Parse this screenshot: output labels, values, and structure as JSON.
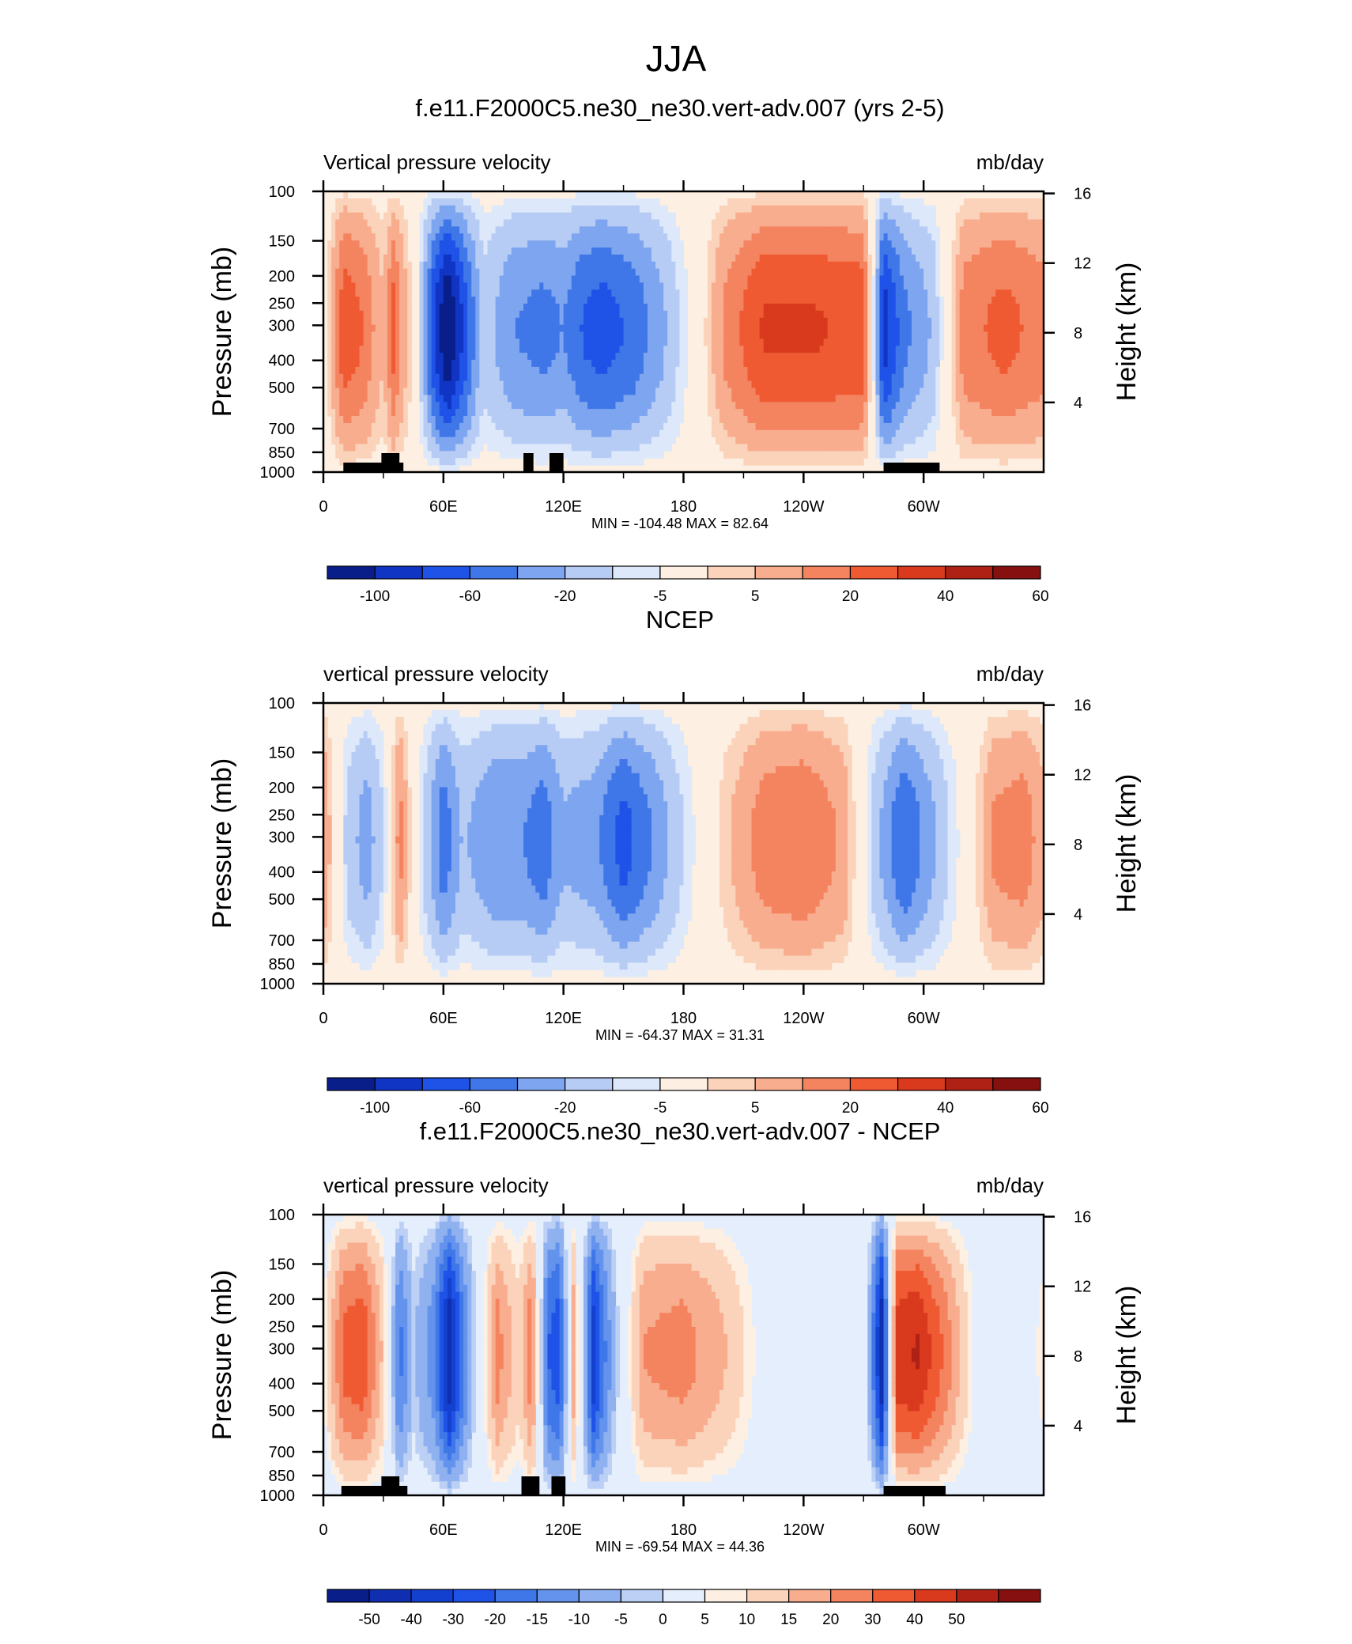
{
  "main_title": "JJA",
  "chart_data": [
    {
      "type": "heatmap",
      "title": "f.e11.F2000C5.ne30_ne30.vert-adv.007 (yrs 2-5)",
      "left_label": "Vertical pressure velocity",
      "units_label": "mb/day",
      "ylabel": "Pressure (mb)",
      "ylabel_right": "Height (km)",
      "y_ticks": [
        "100",
        "150",
        "200",
        "250",
        "300",
        "400",
        "500",
        "700",
        "850",
        "1000"
      ],
      "y_right_ticks": [
        "16",
        "12",
        "8",
        "4"
      ],
      "x_ticks": [
        "0",
        "60E",
        "120E",
        "180",
        "120W",
        "60W"
      ],
      "stats": "MIN = -104.48  MAX =  82.64",
      "colorbar_labels": [
        "-100",
        "-60",
        "-20",
        "-5",
        "5",
        "20",
        "40",
        "60"
      ],
      "colorbar_colors": [
        "#0a1e8a",
        "#1034c4",
        "#1f52e6",
        "#3f77e8",
        "#7ea5ef",
        "#b7ccf5",
        "#dde9fb",
        "#fdf0e3",
        "#fbd3bb",
        "#f8ad8e",
        "#f4845f",
        "#ef5a33",
        "#d9391d",
        "#b02115",
        "#85100f"
      ],
      "columns": [
        {
          "x": 0,
          "core": 0.0
        },
        {
          "x": 10,
          "core": 0.55
        },
        {
          "x": 20,
          "core": 0.45
        },
        {
          "x": 30,
          "core": 0.2
        },
        {
          "x": 35,
          "core": 0.5
        },
        {
          "x": 45,
          "core": 0.05
        },
        {
          "x": 55,
          "core": -0.7
        },
        {
          "x": 62,
          "core": -1.0
        },
        {
          "x": 70,
          "core": -0.7
        },
        {
          "x": 80,
          "core": -0.25
        },
        {
          "x": 95,
          "core": -0.45
        },
        {
          "x": 110,
          "core": -0.5
        },
        {
          "x": 120,
          "core": -0.45
        },
        {
          "x": 130,
          "core": -0.6
        },
        {
          "x": 140,
          "core": -0.65
        },
        {
          "x": 155,
          "core": -0.55
        },
        {
          "x": 170,
          "core": -0.35
        },
        {
          "x": 185,
          "core": -0.05
        },
        {
          "x": 200,
          "core": 0.35
        },
        {
          "x": 220,
          "core": 0.6
        },
        {
          "x": 245,
          "core": 0.6
        },
        {
          "x": 270,
          "core": 0.55
        },
        {
          "x": 280,
          "core": -0.8
        },
        {
          "x": 290,
          "core": -0.5
        },
        {
          "x": 305,
          "core": -0.3
        },
        {
          "x": 320,
          "core": 0.4
        },
        {
          "x": 340,
          "core": 0.5
        },
        {
          "x": 360,
          "core": 0.4
        }
      ],
      "land_marks": [
        [
          10,
          40,
          "low"
        ],
        [
          29,
          38,
          "high"
        ],
        [
          100,
          105,
          "high"
        ],
        [
          113,
          120,
          "high"
        ],
        [
          280,
          308,
          "low"
        ]
      ]
    },
    {
      "type": "heatmap",
      "title": "NCEP",
      "left_label": "vertical pressure velocity",
      "units_label": "mb/day",
      "ylabel": "Pressure (mb)",
      "ylabel_right": "Height (km)",
      "y_ticks": [
        "100",
        "150",
        "200",
        "250",
        "300",
        "400",
        "500",
        "700",
        "850",
        "1000"
      ],
      "y_right_ticks": [
        "16",
        "12",
        "8",
        "4"
      ],
      "x_ticks": [
        "0",
        "60E",
        "120E",
        "180",
        "120W",
        "60W"
      ],
      "stats": "MIN = -64.37  MAX =  31.31",
      "colorbar_labels": [
        "-100",
        "-60",
        "-20",
        "-5",
        "5",
        "20",
        "40",
        "60"
      ],
      "colorbar_colors": [
        "#0a1e8a",
        "#1034c4",
        "#1f52e6",
        "#3f77e8",
        "#7ea5ef",
        "#b7ccf5",
        "#dde9fb",
        "#fdf0e3",
        "#fbd3bb",
        "#f8ad8e",
        "#f4845f",
        "#ef5a33",
        "#d9391d",
        "#b02115",
        "#85100f"
      ],
      "columns": [
        {
          "x": 0,
          "core": 0.35
        },
        {
          "x": 12,
          "core": -0.25
        },
        {
          "x": 22,
          "core": -0.4
        },
        {
          "x": 30,
          "core": -0.2
        },
        {
          "x": 38,
          "core": 0.4
        },
        {
          "x": 48,
          "core": -0.15
        },
        {
          "x": 60,
          "core": -0.55
        },
        {
          "x": 70,
          "core": -0.3
        },
        {
          "x": 85,
          "core": -0.45
        },
        {
          "x": 100,
          "core": -0.45
        },
        {
          "x": 110,
          "core": -0.55
        },
        {
          "x": 120,
          "core": -0.35
        },
        {
          "x": 135,
          "core": -0.4
        },
        {
          "x": 150,
          "core": -0.65
        },
        {
          "x": 165,
          "core": -0.45
        },
        {
          "x": 180,
          "core": -0.2
        },
        {
          "x": 200,
          "core": 0.15
        },
        {
          "x": 220,
          "core": 0.4
        },
        {
          "x": 240,
          "core": 0.45
        },
        {
          "x": 260,
          "core": 0.3
        },
        {
          "x": 275,
          "core": -0.25
        },
        {
          "x": 290,
          "core": -0.6
        },
        {
          "x": 305,
          "core": -0.35
        },
        {
          "x": 320,
          "core": -0.05
        },
        {
          "x": 335,
          "core": 0.35
        },
        {
          "x": 350,
          "core": 0.4
        },
        {
          "x": 360,
          "core": 0.25
        }
      ],
      "land_marks": []
    },
    {
      "type": "heatmap",
      "title": "f.e11.F2000C5.ne30_ne30.vert-adv.007 - NCEP",
      "left_label": "vertical pressure velocity",
      "units_label": "mb/day",
      "ylabel": "Pressure (mb)",
      "ylabel_right": "Height (km)",
      "y_ticks": [
        "100",
        "150",
        "200",
        "250",
        "300",
        "400",
        "500",
        "700",
        "850",
        "1000"
      ],
      "y_right_ticks": [
        "16",
        "12",
        "8",
        "4"
      ],
      "x_ticks": [
        "0",
        "60E",
        "120E",
        "180",
        "120W",
        "60W"
      ],
      "stats": "MIN = -69.54  MAX =  44.36",
      "colorbar_labels": [
        "-50",
        "-40",
        "-30",
        "-20",
        "-15",
        "-10",
        "-5",
        "0",
        "5",
        "10",
        "15",
        "20",
        "30",
        "40",
        "50"
      ],
      "colorbar_colors": [
        "#0a1e8a",
        "#0f2fb0",
        "#1440d0",
        "#1f52e6",
        "#3f77e8",
        "#6393ec",
        "#8fb1f0",
        "#bcd0f6",
        "#e4eefc",
        "#fdf0e3",
        "#fbd3bb",
        "#f8ad8e",
        "#f4845f",
        "#ef5a33",
        "#d9391d",
        "#b02115",
        "#85100f"
      ],
      "columns": [
        {
          "x": 0,
          "core": 0.1
        },
        {
          "x": 10,
          "core": 0.55
        },
        {
          "x": 20,
          "core": 0.6
        },
        {
          "x": 30,
          "core": 0.25
        },
        {
          "x": 38,
          "core": -0.45
        },
        {
          "x": 45,
          "core": -0.15
        },
        {
          "x": 55,
          "core": -0.35
        },
        {
          "x": 63,
          "core": -0.85
        },
        {
          "x": 72,
          "core": -0.3
        },
        {
          "x": 87,
          "core": 0.45
        },
        {
          "x": 98,
          "core": 0.2
        },
        {
          "x": 104,
          "core": 0.5
        },
        {
          "x": 112,
          "core": -0.5
        },
        {
          "x": 118,
          "core": -0.6
        },
        {
          "x": 125,
          "core": 0.35
        },
        {
          "x": 135,
          "core": -0.7
        },
        {
          "x": 145,
          "core": -0.2
        },
        {
          "x": 160,
          "core": 0.4
        },
        {
          "x": 180,
          "core": 0.45
        },
        {
          "x": 200,
          "core": 0.3
        },
        {
          "x": 220,
          "core": 0.05
        },
        {
          "x": 250,
          "core": -0.05
        },
        {
          "x": 270,
          "core": 0.1
        },
        {
          "x": 279,
          "core": -0.85
        },
        {
          "x": 287,
          "core": 0.7
        },
        {
          "x": 297,
          "core": 0.75
        },
        {
          "x": 310,
          "core": 0.5
        },
        {
          "x": 325,
          "core": 0.1
        },
        {
          "x": 340,
          "core": -0.1
        },
        {
          "x": 360,
          "core": 0.15
        }
      ],
      "land_marks": [
        [
          9,
          42,
          "low"
        ],
        [
          29,
          38,
          "high"
        ],
        [
          99,
          108,
          "high"
        ],
        [
          114,
          121,
          "high"
        ],
        [
          280,
          311,
          "low"
        ]
      ]
    }
  ]
}
